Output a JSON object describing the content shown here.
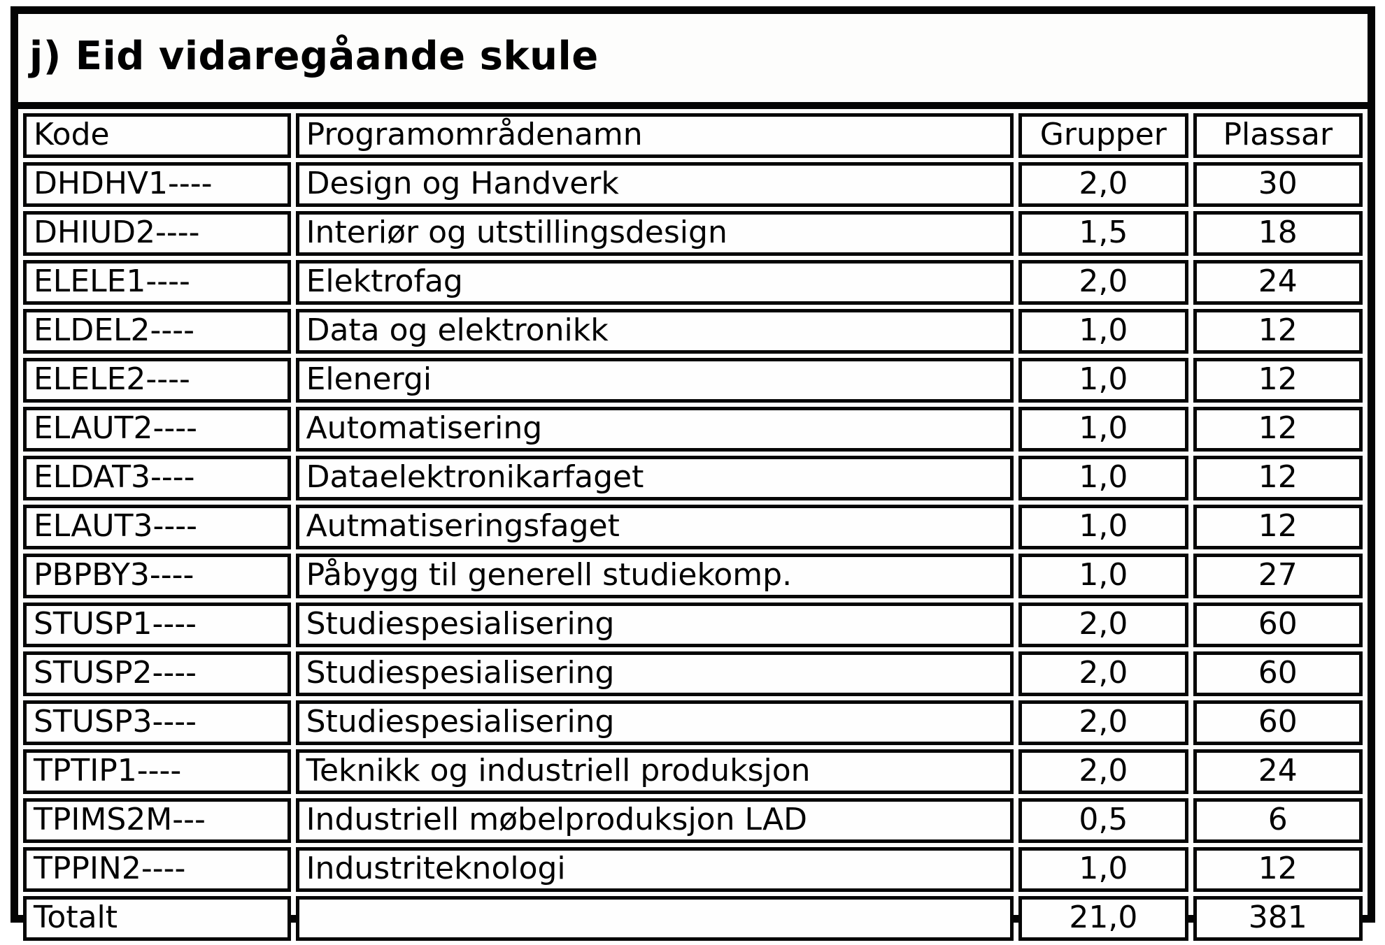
{
  "title": "j) Eid vidaregåande skule",
  "colors": {
    "border": "#040404",
    "background": "#ffffff",
    "text": "#000000"
  },
  "table": {
    "columns": [
      {
        "key": "kode",
        "label": "Kode",
        "align": "left"
      },
      {
        "key": "namn",
        "label": "Programområdenamn",
        "align": "left"
      },
      {
        "key": "grupper",
        "label": "Grupper",
        "align": "center"
      },
      {
        "key": "plassar",
        "label": "Plassar",
        "align": "center"
      }
    ],
    "rows": [
      {
        "kode": "DHDHV1----",
        "namn": "Design og Handverk",
        "grupper": "2,0",
        "plassar": "30"
      },
      {
        "kode": "DHIUD2----",
        "namn": "Interiør og utstillingsdesign",
        "grupper": "1,5",
        "plassar": "18"
      },
      {
        "kode": "ELELE1----",
        "namn": "Elektrofag",
        "grupper": "2,0",
        "plassar": "24"
      },
      {
        "kode": "ELDEL2----",
        "namn": "Data og elektronikk",
        "grupper": "1,0",
        "plassar": "12"
      },
      {
        "kode": "ELELE2----",
        "namn": "Elenergi",
        "grupper": "1,0",
        "plassar": "12"
      },
      {
        "kode": "ELAUT2----",
        "namn": "Automatisering",
        "grupper": "1,0",
        "plassar": "12"
      },
      {
        "kode": "ELDAT3----",
        "namn": "Dataelektronikarfaget",
        "grupper": "1,0",
        "plassar": "12"
      },
      {
        "kode": "ELAUT3----",
        "namn": "Autmatiseringsfaget",
        "grupper": "1,0",
        "plassar": "12"
      },
      {
        "kode": "PBPBY3----",
        "namn": "Påbygg til generell studiekomp.",
        "grupper": "1,0",
        "plassar": "27"
      },
      {
        "kode": "STUSP1----",
        "namn": "Studiespesialisering",
        "grupper": "2,0",
        "plassar": "60"
      },
      {
        "kode": "STUSP2----",
        "namn": "Studiespesialisering",
        "grupper": "2,0",
        "plassar": "60"
      },
      {
        "kode": "STUSP3----",
        "namn": "Studiespesialisering",
        "grupper": "2,0",
        "plassar": "60"
      },
      {
        "kode": "TPTIP1----",
        "namn": "Teknikk og industriell produksjon",
        "grupper": "2,0",
        "plassar": "24"
      },
      {
        "kode": "TPIMS2M---",
        "namn": "Industriell møbelproduksjon LAD",
        "grupper": "0,5",
        "plassar": "6"
      },
      {
        "kode": "TPPIN2----",
        "namn": "Industriteknologi",
        "grupper": "1,0",
        "plassar": "12"
      }
    ],
    "total": {
      "kode": "Totalt",
      "namn": "",
      "grupper": "21,0",
      "plassar": "381"
    }
  }
}
